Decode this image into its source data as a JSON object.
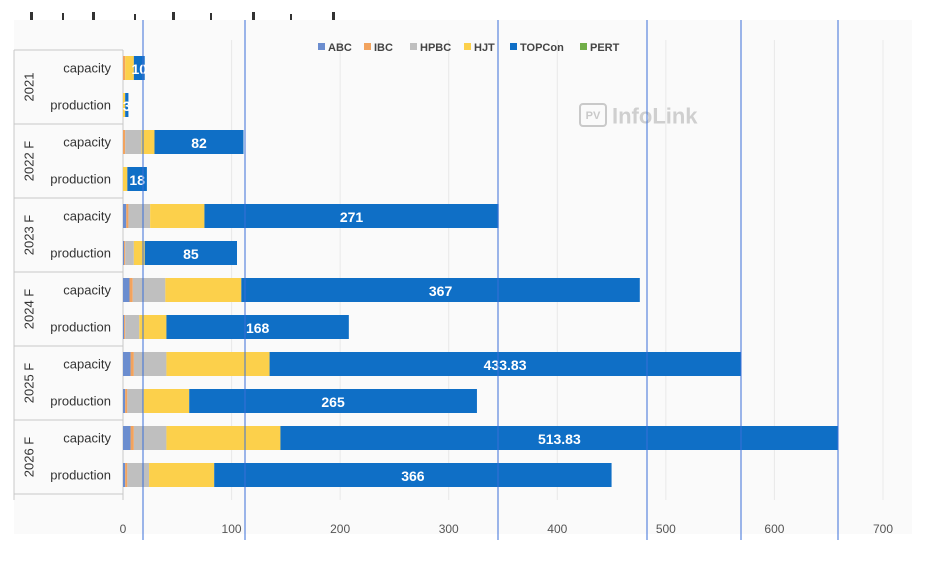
{
  "chart_data": {
    "type": "bar",
    "orientation": "horizontal",
    "stacked": true,
    "title": "",
    "xlabel": "",
    "ylabel": "",
    "xlim": [
      0,
      700
    ],
    "x_ticks": [
      0,
      100,
      200,
      300,
      400,
      500,
      600,
      700
    ],
    "grid": true,
    "legend_position": "top",
    "watermark": "PV InfoLink",
    "groups": [
      "2021",
      "2022 F",
      "2023 F",
      "2024 F",
      "2025 F",
      "2026 F"
    ],
    "categories": [
      {
        "group": "2021",
        "label": "capacity"
      },
      {
        "group": "2021",
        "label": "production"
      },
      {
        "group": "2022 F",
        "label": "capacity"
      },
      {
        "group": "2022 F",
        "label": "production"
      },
      {
        "group": "2023 F",
        "label": "capacity"
      },
      {
        "group": "2023 F",
        "label": "production"
      },
      {
        "group": "2024 F",
        "label": "capacity"
      },
      {
        "group": "2024 F",
        "label": "production"
      },
      {
        "group": "2025 F",
        "label": "capacity"
      },
      {
        "group": "2025 F",
        "label": "production"
      },
      {
        "group": "2026 F",
        "label": "capacity"
      },
      {
        "group": "2026 F",
        "label": "production"
      }
    ],
    "series": [
      {
        "name": "ABC",
        "color": "#6b8dcf",
        "values": [
          0,
          0,
          0,
          0,
          3,
          1,
          6,
          1,
          7,
          2,
          7,
          2
        ]
      },
      {
        "name": "IBC",
        "color": "#f2a35e",
        "values": [
          2,
          0,
          2,
          0,
          2,
          1,
          3,
          1,
          3,
          2,
          3,
          2
        ]
      },
      {
        "name": "HPBC",
        "color": "#bfbfbf",
        "values": [
          0,
          0,
          15,
          0,
          20,
          8,
          30,
          13,
          30,
          15,
          30,
          20
        ]
      },
      {
        "name": "HJT",
        "color": "#fcd04b",
        "values": [
          8,
          2,
          12,
          4,
          50,
          10,
          70,
          25,
          95,
          42,
          105,
          60
        ]
      },
      {
        "name": "TOPCon",
        "color": "#0f6fc6",
        "values": [
          10,
          3,
          82,
          18,
          271,
          85,
          367,
          168,
          433.83,
          265,
          513.83,
          366
        ]
      },
      {
        "name": "PERT",
        "color": "#70ad47",
        "values": [
          0,
          0,
          0,
          0,
          0,
          0,
          0,
          0,
          0,
          0,
          0,
          0
        ]
      }
    ],
    "data_labels": [
      {
        "series": "TOPCon",
        "category_index": 0,
        "text": "10"
      },
      {
        "series": "TOPCon",
        "category_index": 1,
        "text": "3"
      },
      {
        "series": "TOPCon",
        "category_index": 2,
        "text": "82"
      },
      {
        "series": "TOPCon",
        "category_index": 3,
        "text": "18"
      },
      {
        "series": "TOPCon",
        "category_index": 4,
        "text": "271"
      },
      {
        "series": "TOPCon",
        "category_index": 5,
        "text": "85"
      },
      {
        "series": "TOPCon",
        "category_index": 6,
        "text": "367"
      },
      {
        "series": "TOPCon",
        "category_index": 7,
        "text": "168"
      },
      {
        "series": "TOPCon",
        "category_index": 8,
        "text": "433.83"
      },
      {
        "series": "TOPCon",
        "category_index": 9,
        "text": "265"
      },
      {
        "series": "TOPCon",
        "category_index": 10,
        "text": "513.83"
      },
      {
        "series": "TOPCon",
        "category_index": 11,
        "text": "366"
      }
    ]
  }
}
